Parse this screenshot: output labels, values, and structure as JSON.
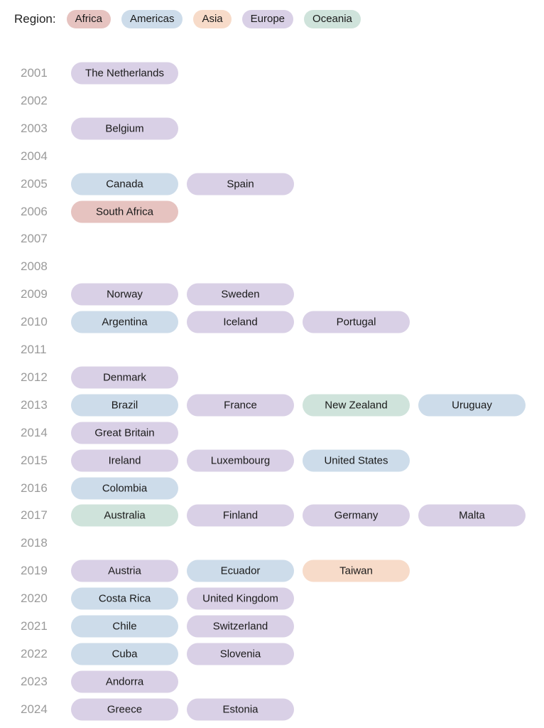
{
  "legend": {
    "title": "Region:",
    "items": [
      {
        "region": "Africa",
        "label": "Africa"
      },
      {
        "region": "Americas",
        "label": "Americas"
      },
      {
        "region": "Asia",
        "label": "Asia"
      },
      {
        "region": "Europe",
        "label": "Europe"
      },
      {
        "region": "Oceania",
        "label": "Oceania"
      }
    ]
  },
  "colors": {
    "Africa": "#e6c3c0",
    "Americas": "#cddcea",
    "Asia": "#f7dbc9",
    "Europe": "#d9d0e6",
    "Oceania": "#cfe3db"
  },
  "chart_data": {
    "type": "table",
    "rows": [
      {
        "year": "2001",
        "countries": [
          {
            "name": "The Netherlands",
            "region": "Europe"
          }
        ]
      },
      {
        "year": "2002",
        "countries": []
      },
      {
        "year": "2003",
        "countries": [
          {
            "name": "Belgium",
            "region": "Europe"
          }
        ]
      },
      {
        "year": "2004",
        "countries": []
      },
      {
        "year": "2005",
        "countries": [
          {
            "name": "Canada",
            "region": "Americas"
          },
          {
            "name": "Spain",
            "region": "Europe"
          }
        ]
      },
      {
        "year": "2006",
        "countries": [
          {
            "name": "South Africa",
            "region": "Africa"
          }
        ]
      },
      {
        "year": "2007",
        "countries": []
      },
      {
        "year": "2008",
        "countries": []
      },
      {
        "year": "2009",
        "countries": [
          {
            "name": "Norway",
            "region": "Europe"
          },
          {
            "name": "Sweden",
            "region": "Europe"
          }
        ]
      },
      {
        "year": "2010",
        "countries": [
          {
            "name": "Argentina",
            "region": "Americas"
          },
          {
            "name": "Iceland",
            "region": "Europe"
          },
          {
            "name": "Portugal",
            "region": "Europe"
          }
        ]
      },
      {
        "year": "2011",
        "countries": []
      },
      {
        "year": "2012",
        "countries": [
          {
            "name": "Denmark",
            "region": "Europe"
          }
        ]
      },
      {
        "year": "2013",
        "countries": [
          {
            "name": "Brazil",
            "region": "Americas"
          },
          {
            "name": "France",
            "region": "Europe"
          },
          {
            "name": "New Zealand",
            "region": "Oceania"
          },
          {
            "name": "Uruguay",
            "region": "Americas"
          }
        ]
      },
      {
        "year": "2014",
        "countries": [
          {
            "name": "Great Britain",
            "region": "Europe"
          }
        ]
      },
      {
        "year": "2015",
        "countries": [
          {
            "name": "Ireland",
            "region": "Europe"
          },
          {
            "name": "Luxembourg",
            "region": "Europe"
          },
          {
            "name": "United States",
            "region": "Americas"
          }
        ]
      },
      {
        "year": "2016",
        "countries": [
          {
            "name": "Colombia",
            "region": "Americas"
          }
        ]
      },
      {
        "year": "2017",
        "countries": [
          {
            "name": "Australia",
            "region": "Oceania"
          },
          {
            "name": "Finland",
            "region": "Europe"
          },
          {
            "name": "Germany",
            "region": "Europe"
          },
          {
            "name": "Malta",
            "region": "Europe"
          }
        ]
      },
      {
        "year": "2018",
        "countries": []
      },
      {
        "year": "2019",
        "countries": [
          {
            "name": "Austria",
            "region": "Europe"
          },
          {
            "name": "Ecuador",
            "region": "Americas"
          },
          {
            "name": "Taiwan",
            "region": "Asia"
          }
        ]
      },
      {
        "year": "2020",
        "countries": [
          {
            "name": "Costa Rica",
            "region": "Americas"
          },
          {
            "name": "United Kingdom",
            "region": "Europe"
          }
        ]
      },
      {
        "year": "2021",
        "countries": [
          {
            "name": "Chile",
            "region": "Americas"
          },
          {
            "name": "Switzerland",
            "region": "Europe"
          }
        ]
      },
      {
        "year": "2022",
        "countries": [
          {
            "name": "Cuba",
            "region": "Americas"
          },
          {
            "name": "Slovenia",
            "region": "Europe"
          }
        ]
      },
      {
        "year": "2023",
        "countries": [
          {
            "name": "Andorra",
            "region": "Europe"
          }
        ]
      },
      {
        "year": "2024",
        "countries": [
          {
            "name": "Greece",
            "region": "Europe"
          },
          {
            "name": "Estonia",
            "region": "Europe"
          }
        ]
      }
    ]
  }
}
